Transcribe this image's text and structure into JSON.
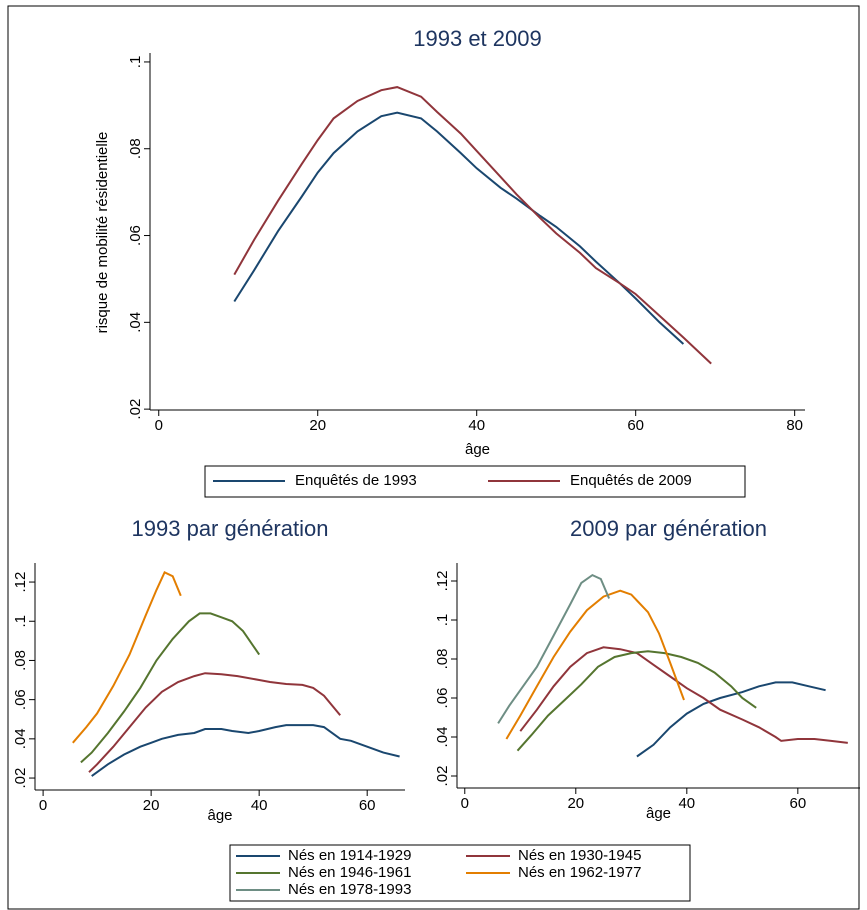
{
  "chart_data": [
    {
      "type": "line",
      "title": "1993 et 2009",
      "x_label": "âge",
      "y_label": "risque de mobilité résidentielle",
      "xlim": [
        -1.1,
        81.3
      ],
      "ylim": [
        0.0198,
        0.1016
      ],
      "xticks": [
        0,
        20,
        40,
        60,
        80
      ],
      "yticks": [
        {
          "value": 0.02,
          "label": ".02"
        },
        {
          "value": 0.04,
          "label": ".04"
        },
        {
          "value": 0.06,
          "label": ".06"
        },
        {
          "value": 0.08,
          "label": ".08"
        },
        {
          "value": 0.1,
          "label": ".1"
        }
      ],
      "series": [
        {
          "name": "Enquêtés de 1993",
          "color": "#1a476f",
          "x": [
            9.5,
            12,
            15,
            18,
            20,
            22,
            25,
            28,
            30,
            33,
            35,
            38,
            40,
            43,
            45,
            48,
            50,
            53,
            55,
            58,
            60,
            63,
            66
          ],
          "values": [
            0.0448,
            0.052,
            0.061,
            0.069,
            0.0745,
            0.079,
            0.084,
            0.0875,
            0.0883,
            0.087,
            0.084,
            0.079,
            0.0755,
            0.071,
            0.0685,
            0.0645,
            0.062,
            0.0575,
            0.054,
            0.049,
            0.0455,
            0.04,
            0.035
          ]
        },
        {
          "name": "Enquêtés de 2009",
          "color": "#90353b",
          "x": [
            9.5,
            12,
            15,
            18,
            20,
            22,
            25,
            28,
            30,
            33,
            35,
            38,
            40,
            43,
            45,
            48,
            50,
            53,
            55,
            58,
            60,
            63,
            66,
            69.5
          ],
          "values": [
            0.051,
            0.059,
            0.068,
            0.0765,
            0.082,
            0.087,
            0.091,
            0.0935,
            0.0942,
            0.092,
            0.0885,
            0.0835,
            0.0795,
            0.0735,
            0.0695,
            0.064,
            0.0605,
            0.056,
            0.0525,
            0.049,
            0.0465,
            0.0415,
            0.0365,
            0.0305
          ]
        }
      ]
    },
    {
      "type": "line",
      "title": "1993 par génération",
      "x_label": "âge",
      "xlim": [
        -1.5,
        67
      ],
      "ylim": [
        0.0139,
        0.1287
      ],
      "xticks": [
        0,
        20,
        40,
        60
      ],
      "yticks": [
        {
          "value": 0.02,
          "label": ".02"
        },
        {
          "value": 0.04,
          "label": ".04"
        },
        {
          "value": 0.06,
          "label": ".06"
        },
        {
          "value": 0.08,
          "label": ".08"
        },
        {
          "value": 0.1,
          "label": ".1"
        },
        {
          "value": 0.12,
          "label": ".12"
        }
      ],
      "series": [
        {
          "name": "Nés en 1914-1929",
          "color": "#1a476f",
          "x": [
            9,
            12,
            15,
            18,
            20,
            22,
            25,
            28,
            30,
            33,
            35,
            38,
            40,
            43,
            45,
            48,
            50,
            52,
            55,
            57,
            60,
            63,
            66
          ],
          "values": [
            0.021,
            0.027,
            0.032,
            0.036,
            0.038,
            0.04,
            0.042,
            0.043,
            0.045,
            0.045,
            0.044,
            0.043,
            0.044,
            0.046,
            0.047,
            0.047,
            0.047,
            0.046,
            0.04,
            0.039,
            0.036,
            0.033,
            0.031
          ]
        },
        {
          "name": "Nés en 1930-1945",
          "color": "#90353b",
          "x": [
            8.5,
            10,
            13,
            16,
            19,
            22,
            25,
            28,
            30,
            33,
            36,
            40,
            42,
            45,
            48,
            50,
            52,
            55
          ],
          "values": [
            0.023,
            0.027,
            0.036,
            0.046,
            0.056,
            0.064,
            0.069,
            0.072,
            0.0735,
            0.073,
            0.072,
            0.07,
            0.069,
            0.068,
            0.0675,
            0.066,
            0.062,
            0.052
          ]
        },
        {
          "name": "Nés en 1946-1961",
          "color": "#55752f",
          "x": [
            7,
            9,
            12,
            15,
            18,
            21,
            24,
            27,
            29,
            31,
            33,
            35,
            37,
            40
          ],
          "values": [
            0.028,
            0.033,
            0.043,
            0.054,
            0.066,
            0.08,
            0.091,
            0.1,
            0.104,
            0.104,
            0.102,
            0.1,
            0.095,
            0.083
          ]
        },
        {
          "name": "Nés en 1962-1977",
          "color": "#e37e00",
          "x": [
            5.5,
            8,
            10,
            13,
            16,
            19,
            21,
            22.5,
            24,
            25.5
          ],
          "values": [
            0.038,
            0.046,
            0.053,
            0.067,
            0.083,
            0.103,
            0.116,
            0.125,
            0.123,
            0.113
          ]
        }
      ]
    },
    {
      "type": "line",
      "title": "2009 par génération",
      "x_label": "âge",
      "xlim": [
        -1.4,
        71.2
      ],
      "ylim": [
        0.01385,
        0.1282
      ],
      "xticks": [
        0,
        20,
        40,
        60
      ],
      "yticks": [
        {
          "value": 0.02,
          "label": ".02"
        },
        {
          "value": 0.04,
          "label": ".04"
        },
        {
          "value": 0.06,
          "label": ".06"
        },
        {
          "value": 0.08,
          "label": ".08"
        },
        {
          "value": 0.1,
          "label": ".1"
        },
        {
          "value": 0.12,
          "label": ".12"
        }
      ],
      "series": [
        {
          "name": "Nés en 1914-1929",
          "color": "#1a476f",
          "x": [
            31,
            34,
            37,
            40,
            43,
            46,
            50,
            53,
            56,
            59,
            62,
            65
          ],
          "values": [
            0.03,
            0.036,
            0.045,
            0.052,
            0.057,
            0.06,
            0.063,
            0.066,
            0.068,
            0.068,
            0.066,
            0.064
          ]
        },
        {
          "name": "Nés en 1930-1945",
          "color": "#90353b",
          "x": [
            10,
            13,
            16,
            19,
            22,
            25,
            28,
            31,
            34,
            37,
            40,
            43,
            46,
            50,
            53,
            56,
            57,
            60,
            63,
            66,
            69
          ],
          "values": [
            0.043,
            0.054,
            0.066,
            0.076,
            0.083,
            0.086,
            0.085,
            0.083,
            0.077,
            0.071,
            0.065,
            0.06,
            0.054,
            0.049,
            0.045,
            0.04,
            0.038,
            0.039,
            0.039,
            0.038,
            0.037
          ]
        },
        {
          "name": "Nés en 1946-1961",
          "color": "#55752f",
          "x": [
            9.5,
            12,
            15,
            18,
            21,
            24,
            27,
            30,
            33,
            36,
            39,
            42,
            45,
            48,
            50,
            52.5
          ],
          "values": [
            0.033,
            0.041,
            0.051,
            0.059,
            0.067,
            0.076,
            0.081,
            0.083,
            0.084,
            0.083,
            0.081,
            0.078,
            0.073,
            0.066,
            0.06,
            0.055
          ]
        },
        {
          "name": "Nés en 1962-1977",
          "color": "#e37e00",
          "x": [
            7.5,
            10,
            13,
            16,
            19,
            22,
            25,
            28,
            30,
            33,
            35,
            37,
            39.5
          ],
          "values": [
            0.039,
            0.051,
            0.066,
            0.081,
            0.094,
            0.105,
            0.112,
            0.115,
            0.113,
            0.104,
            0.093,
            0.078,
            0.059
          ]
        },
        {
          "name": "Nés en 1978-1993",
          "color": "#6e8e84",
          "x": [
            6,
            8,
            10,
            13,
            16,
            19,
            21,
            23,
            24.5,
            26
          ],
          "values": [
            0.047,
            0.056,
            0.064,
            0.076,
            0.092,
            0.108,
            0.119,
            0.123,
            0.121,
            0.111
          ]
        }
      ]
    }
  ]
}
